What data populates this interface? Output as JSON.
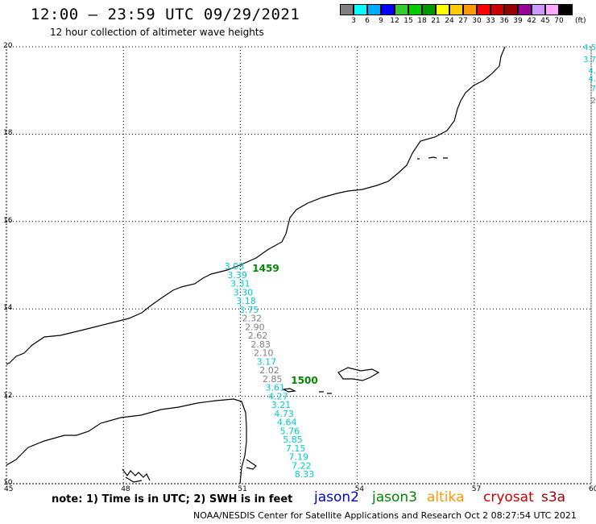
{
  "header": {
    "title": "12:00 – 23:59 UTC 09/29/2021",
    "subtitle": "12 hour collection of altimeter wave heights"
  },
  "legend": {
    "colors": [
      "#808080",
      "#00ffff",
      "#00aaff",
      "#0000ff",
      "#33cc33",
      "#00cc00",
      "#009900",
      "#ffff00",
      "#ffcc00",
      "#ff9900",
      "#ff0000",
      "#cc0000",
      "#990000",
      "#990099",
      "#cc99ff",
      "#ffaaff",
      "#000000"
    ],
    "labels": [
      "3",
      "6",
      "9",
      "12",
      "15",
      "18",
      "21",
      "24",
      "27",
      "30",
      "33",
      "36",
      "39",
      "42",
      "45",
      "70"
    ],
    "unit": "(ft)"
  },
  "axes": {
    "lon_ticks": [
      "45",
      "48",
      "51",
      "54",
      "57",
      "60"
    ],
    "lat_ticks": [
      "20",
      "18",
      "16",
      "14",
      "12",
      "10"
    ]
  },
  "map": {
    "lon_range": [
      45,
      60
    ],
    "lat_range": [
      10,
      20
    ],
    "pass_times": [
      {
        "label": "1459",
        "color": "#008800"
      },
      {
        "label": "1500",
        "color": "#008800"
      }
    ],
    "track_readings": [
      {
        "value": "3.03",
        "color": "#00cccc"
      },
      {
        "value": "3.39",
        "color": "#00cccc"
      },
      {
        "value": "3.31",
        "color": "#00cccc"
      },
      {
        "value": "3.30",
        "color": "#00cccc"
      },
      {
        "value": "3.18",
        "color": "#00cccc"
      },
      {
        "value": "3.75",
        "color": "#00cccc"
      },
      {
        "value": "2.32",
        "color": "#808080"
      },
      {
        "value": "2.90",
        "color": "#808080"
      },
      {
        "value": "2.62",
        "color": "#808080"
      },
      {
        "value": "2.83",
        "color": "#808080"
      },
      {
        "value": "2.10",
        "color": "#808080"
      },
      {
        "value": "3.17",
        "color": "#00cccc"
      },
      {
        "value": "2.02",
        "color": "#808080"
      },
      {
        "value": "2.85",
        "color": "#808080"
      },
      {
        "value": "3.61",
        "color": "#00cccc"
      },
      {
        "value": "4.27",
        "color": "#00cccc"
      },
      {
        "value": "3.21",
        "color": "#00cccc"
      },
      {
        "value": "4.73",
        "color": "#00cccc"
      },
      {
        "value": "4.64",
        "color": "#00cccc"
      },
      {
        "value": "5.76",
        "color": "#00cccc"
      },
      {
        "value": "5.85",
        "color": "#00cccc"
      },
      {
        "value": "7.15",
        "color": "#00cccc"
      },
      {
        "value": "7.19",
        "color": "#00cccc"
      },
      {
        "value": "7.22",
        "color": "#00cccc"
      },
      {
        "value": "8.33",
        "color": "#00cccc"
      }
    ],
    "edge_readings": [
      {
        "value": "4.5",
        "color": "#00cccc"
      },
      {
        "value": "3.7",
        "color": "#00cccc"
      },
      {
        "value": "4.",
        "color": "#00cccc"
      },
      {
        "value": "4.",
        "color": "#00cccc"
      },
      {
        "value": "7",
        "color": "#00cccc"
      },
      {
        "value": "2",
        "color": "#808080"
      }
    ]
  },
  "footer": {
    "note": "note:  1) Time is in UTC;  2) SWH is in feet",
    "satellites": [
      {
        "name": "jason2",
        "color": "#0000cc"
      },
      {
        "name": "jason3",
        "color": "#008800"
      },
      {
        "name": "altika",
        "color": "#ff9900"
      },
      {
        "name": "cryosat",
        "color": "#cc0000"
      },
      {
        "name": "s3a",
        "color": "#990000"
      }
    ],
    "credit": "NOAA/NESDIS Center for Satellite Applications and Research    Oct  2 08:27:54 UTC 2021"
  }
}
